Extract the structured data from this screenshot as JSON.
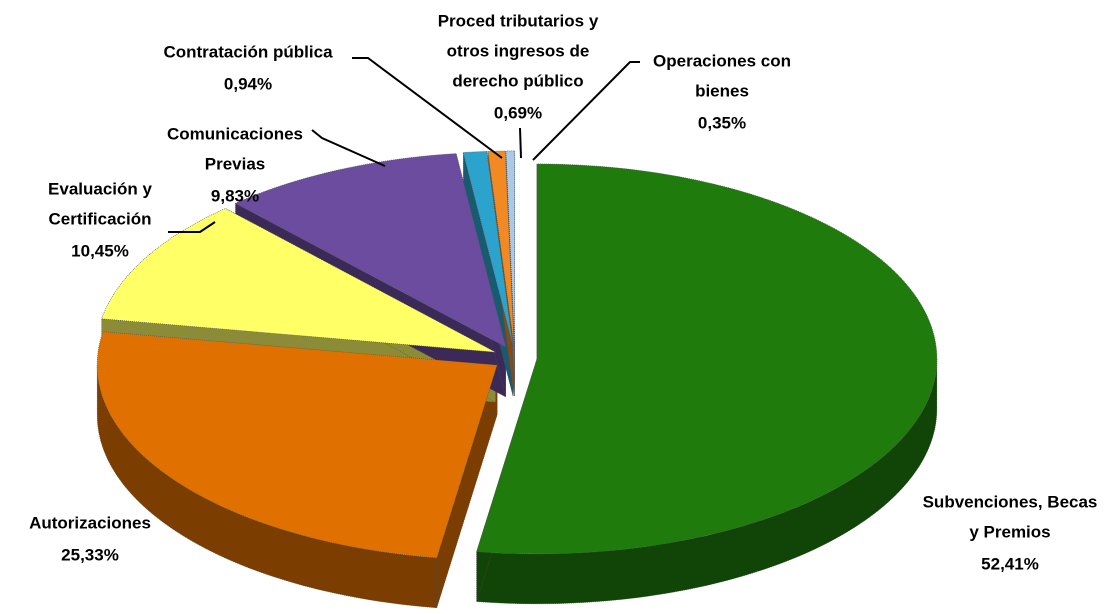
{
  "chart_data": {
    "type": "pie3d",
    "categories": [
      [
        "Subvenciones, Becas",
        "y Premios"
      ],
      [
        "Autorizaciones"
      ],
      [
        "Evaluación y",
        "Certificación"
      ],
      [
        "Comunicaciones",
        "Previas"
      ],
      [
        "Contratación pública"
      ],
      [
        "Proced tributarios y",
        "otros ingresos de",
        "derecho público"
      ],
      [
        "Operaciones con",
        "bienes"
      ]
    ],
    "values": [
      52.41,
      25.33,
      10.45,
      9.83,
      0.94,
      0.69,
      0.35
    ],
    "value_labels": [
      "52,41%",
      "25,33%",
      "10,45%",
      "9,83%",
      "0,94%",
      "0,69%",
      "0,35%"
    ],
    "colors": [
      "#1e7b0c",
      "#e07100",
      "#ffff66",
      "#6b4c9e",
      "#2ba3cc",
      "#f28a24",
      "#a9c9e4"
    ]
  }
}
